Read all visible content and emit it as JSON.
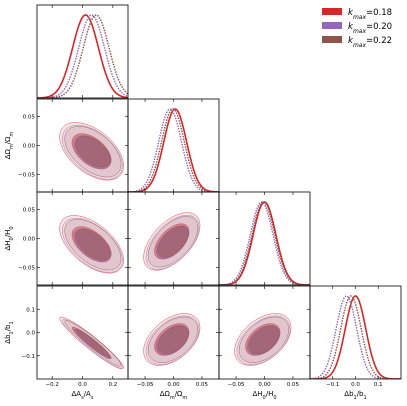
{
  "chart_data": {
    "type": "corner",
    "legend": {
      "placement": "top-right",
      "entries": [
        {
          "label": "k_max=0.18",
          "sub": "max",
          "value": "0.18",
          "color": "#d62728"
        },
        {
          "label": "k_max=0.20",
          "sub": "max",
          "value": "0.20",
          "color": "#9467bd"
        },
        {
          "label": "k_max=0.22",
          "sub": "max",
          "value": "0.22",
          "color": "#8c564b"
        }
      ]
    },
    "parameters": [
      {
        "key": "As",
        "label": "ΔA_s/A_s",
        "range": [
          -0.3,
          0.3
        ],
        "ticks": [
          -0.2,
          0.0,
          0.2
        ],
        "tick_labels": [
          "−0.2",
          "0.0",
          "0.2"
        ]
      },
      {
        "key": "Om",
        "label": "ΔΩ_m/Ω_m",
        "range": [
          -0.08,
          0.08
        ],
        "ticks": [
          -0.05,
          0.0,
          0.05
        ],
        "tick_labels": [
          "−0.05",
          "0.00",
          "0.05"
        ]
      },
      {
        "key": "H0",
        "label": "ΔH_0/H_0",
        "range": [
          -0.08,
          0.08
        ],
        "ticks": [
          -0.05,
          0.0,
          0.05
        ],
        "tick_labels": [
          "−0.05",
          "0.00",
          "0.05"
        ]
      },
      {
        "key": "b1",
        "label": "Δb_1/b_1",
        "range": [
          -0.2,
          0.2
        ],
        "ticks": [
          -0.1,
          0.0,
          0.1
        ],
        "tick_labels": [
          "−0.1",
          "0.0",
          "0.1"
        ]
      }
    ],
    "marginals": [
      {
        "param": "As",
        "series": [
          {
            "k": "0.18",
            "mean": 0.02,
            "sigma": 0.085
          },
          {
            "k": "0.20",
            "mean": 0.06,
            "sigma": 0.085
          },
          {
            "k": "0.22",
            "mean": 0.09,
            "sigma": 0.085
          }
        ]
      },
      {
        "param": "Om",
        "series": [
          {
            "k": "0.18",
            "mean": 0.003,
            "sigma": 0.02
          },
          {
            "k": "0.20",
            "mean": -0.006,
            "sigma": 0.02
          },
          {
            "k": "0.22",
            "mean": -0.001,
            "sigma": 0.02
          }
        ]
      },
      {
        "param": "H0",
        "series": [
          {
            "k": "0.18",
            "mean": 0.0,
            "sigma": 0.02
          },
          {
            "k": "0.20",
            "mean": -0.005,
            "sigma": 0.02
          },
          {
            "k": "0.22",
            "mean": -0.002,
            "sigma": 0.02
          }
        ]
      },
      {
        "param": "b1",
        "series": [
          {
            "k": "0.18",
            "mean": 0.0,
            "sigma": 0.045
          },
          {
            "k": "0.20",
            "mean": -0.04,
            "sigma": 0.045
          },
          {
            "k": "0.22",
            "mean": -0.02,
            "sigma": 0.045
          }
        ]
      }
    ],
    "contours": [
      {
        "x": "As",
        "y": "Om",
        "center": [
          0.06,
          -0.01
        ],
        "sigma_x": 0.085,
        "sigma_y": 0.02,
        "rho": -0.5
      },
      {
        "x": "As",
        "y": "H0",
        "center": [
          0.06,
          -0.01
        ],
        "sigma_x": 0.085,
        "sigma_y": 0.02,
        "rho": -0.55
      },
      {
        "x": "Om",
        "y": "H0",
        "center": [
          -0.003,
          -0.005
        ],
        "sigma_x": 0.02,
        "sigma_y": 0.02,
        "rho": 0.55
      },
      {
        "x": "As",
        "y": "b1",
        "center": [
          0.06,
          -0.045
        ],
        "sigma_x": 0.085,
        "sigma_y": 0.045,
        "rho": -0.95
      },
      {
        "x": "Om",
        "y": "b1",
        "center": [
          -0.003,
          -0.03
        ],
        "sigma_x": 0.02,
        "sigma_y": 0.045,
        "rho": 0.45
      },
      {
        "x": "H0",
        "y": "b1",
        "center": [
          -0.003,
          -0.03
        ],
        "sigma_x": 0.02,
        "sigma_y": 0.045,
        "rho": 0.45
      }
    ],
    "series_offsets": {
      "0.18": [
        0.0,
        0.0
      ],
      "0.20": [
        0.06,
        -0.08
      ],
      "0.22": [
        0.1,
        -0.03
      ]
    },
    "sigma_levels": [
      1,
      2
    ],
    "colors": {
      "0.18": "#d62728",
      "0.20": "#9467bd",
      "0.22": "#8c564b"
    }
  }
}
